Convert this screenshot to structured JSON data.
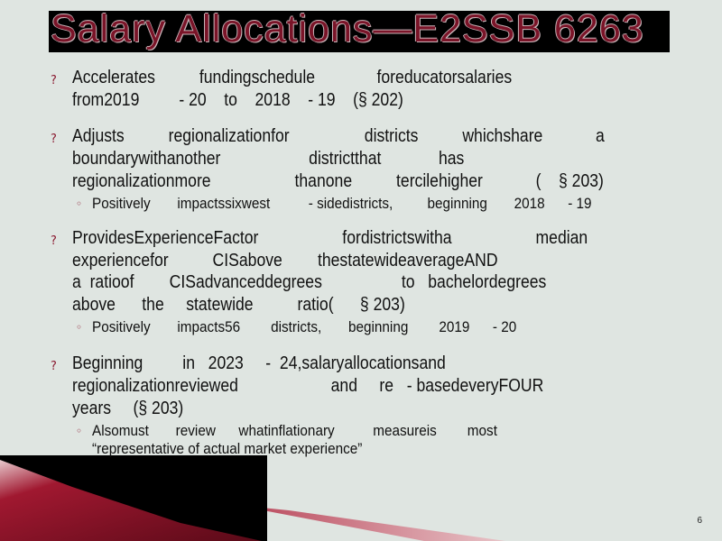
{
  "slide": {
    "title": "Salary Allocations—E2SSB 6263",
    "number": "6"
  },
  "bullets": [
    {
      "lines": [
        "Accelerates          fundingschedule              foreducatorsalaries",
        "from2019         - 20    to    2018    - 19    (§ 202)"
      ],
      "subs": []
    },
    {
      "lines": [
        "Adjusts          regionalizationfor                 districts          whichshare            a",
        "boundarywithanother                    districtthat             has",
        "regionalizationmore                   thanone          tercilehigher            (    § 203)"
      ],
      "subs": [
        "Positively       impactssixwest          - sidedistricts,         beginning       2018      - 19"
      ]
    },
    {
      "lines": [
        "ProvidesExperienceFactor                   fordistrictswitha                   median",
        "experiencefor          CISabove        thestatewideaverageAND",
        "a  ratioof        CISadvanceddegrees                  to   bachelordegrees",
        "above      the     statewide          ratio(      § 203)"
      ],
      "subs": [
        "Positively       impacts56        districts,       beginning        2019      - 20"
      ]
    },
    {
      "lines": [
        "Beginning         in   2023     -  24,salaryallocationsand",
        "regionalizationreviewed                     and     re   - basedeveryFOUR",
        "years     (§ 203)"
      ],
      "subs": [
        "Alsomust       review      whatinflationary          measureis        most",
        "“representative of actual market experience”"
      ]
    }
  ],
  "icons": {
    "bullet": "question-mark-bullet-icon",
    "sub_bullet": "circle-bullet-icon"
  },
  "colors": {
    "background": "#dfe5e1",
    "title_bar": "#000000",
    "title_text": "#7a1428",
    "accent": "#8a1a30"
  }
}
